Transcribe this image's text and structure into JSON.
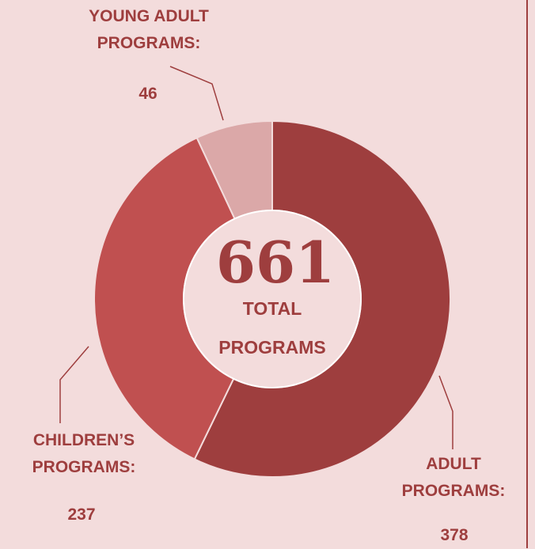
{
  "center": {
    "total": "661",
    "label": "TOTAL\nPROGRAMS"
  },
  "labels": {
    "young_adult_title": "YOUNG ADULT\nPROGRAMS:",
    "young_adult_value": "46",
    "children_title": "CHILDREN’S\nPROGRAMS:",
    "children_value": "237",
    "adult_title": "ADULT\nPROGRAMS:",
    "adult_value": "378"
  },
  "colors": {
    "background": "#f3dcdc",
    "adult": "#9e3e3e",
    "children": "#c05050",
    "young_adult": "#dba8a8",
    "text": "#9e3e3e"
  },
  "chart_data": {
    "type": "pie",
    "total": 661,
    "categories": [
      "ADULT PROGRAMS",
      "CHILDREN’S PROGRAMS",
      "YOUNG ADULT PROGRAMS"
    ],
    "values": [
      378,
      237,
      46
    ],
    "colors": [
      "#9e3e3e",
      "#c05050",
      "#dba8a8"
    ]
  }
}
